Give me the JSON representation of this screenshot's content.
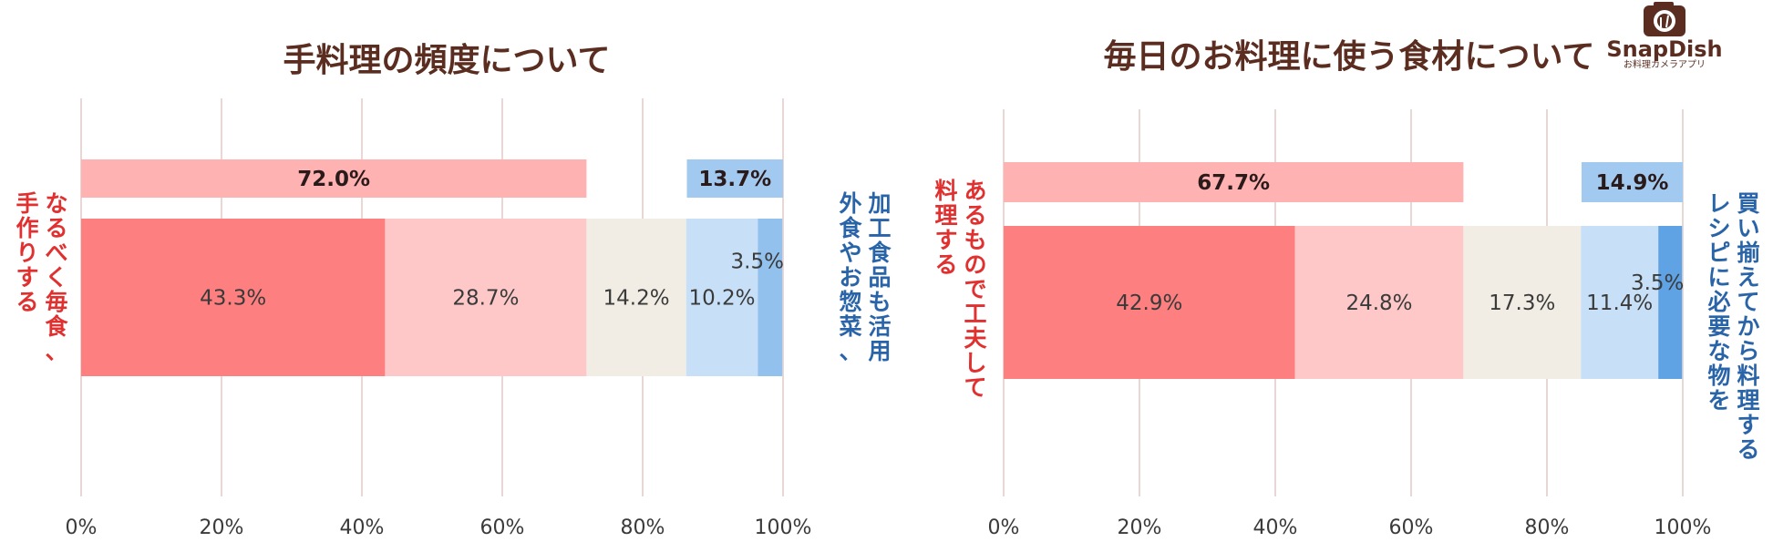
{
  "logo": {
    "name": "SnapDish",
    "tagline": "お料理カメラアプリ"
  },
  "colors": {
    "seg": [
      "#fe7f7f",
      "#fec8c8",
      "#f1ede4",
      "#c8e0f7",
      "#93c1ed"
    ],
    "seg_alt_last": "#5fa3e4",
    "sum_left": "#feb2b2",
    "sum_right": "#a2c9f0",
    "grid": "#e7d8d6"
  },
  "chart_data": [
    {
      "type": "bar",
      "orientation": "horizontal-stacked",
      "title": "手料理の頻度について",
      "xlim": [
        0,
        100
      ],
      "x_ticks": [
        "0%",
        "20%",
        "40%",
        "60%",
        "80%",
        "100%"
      ],
      "segments": [
        43.3,
        28.7,
        14.2,
        10.2,
        3.5
      ],
      "segment_labels": [
        "43.3%",
        "28.7%",
        "14.2%",
        "10.2%",
        "3.5%"
      ],
      "summary_left": {
        "value": 72.0,
        "label": "72.0%"
      },
      "summary_right": {
        "value": 13.7,
        "label": "13.7%"
      },
      "left_label_lines": [
        "なるべく毎食、",
        "手作りする"
      ],
      "right_label_lines": [
        "外食やお惣菜、",
        "加工食品も活用"
      ],
      "grid": true
    },
    {
      "type": "bar",
      "orientation": "horizontal-stacked",
      "title": "毎日のお料理に使う食材について",
      "xlim": [
        0,
        100
      ],
      "x_ticks": [
        "0%",
        "20%",
        "40%",
        "60%",
        "80%",
        "100%"
      ],
      "segments": [
        42.9,
        24.8,
        17.3,
        11.4,
        3.5
      ],
      "segment_labels": [
        "42.9%",
        "24.8%",
        "17.3%",
        "11.4%",
        "3.5%"
      ],
      "summary_left": {
        "value": 67.7,
        "label": "67.7%"
      },
      "summary_right": {
        "value": 14.9,
        "label": "14.9%"
      },
      "left_label_lines": [
        "あるもので工夫して",
        "料理する"
      ],
      "right_label_lines": [
        "レシピに必要な物を",
        "買い揃えてから料理する"
      ],
      "grid": true
    }
  ]
}
